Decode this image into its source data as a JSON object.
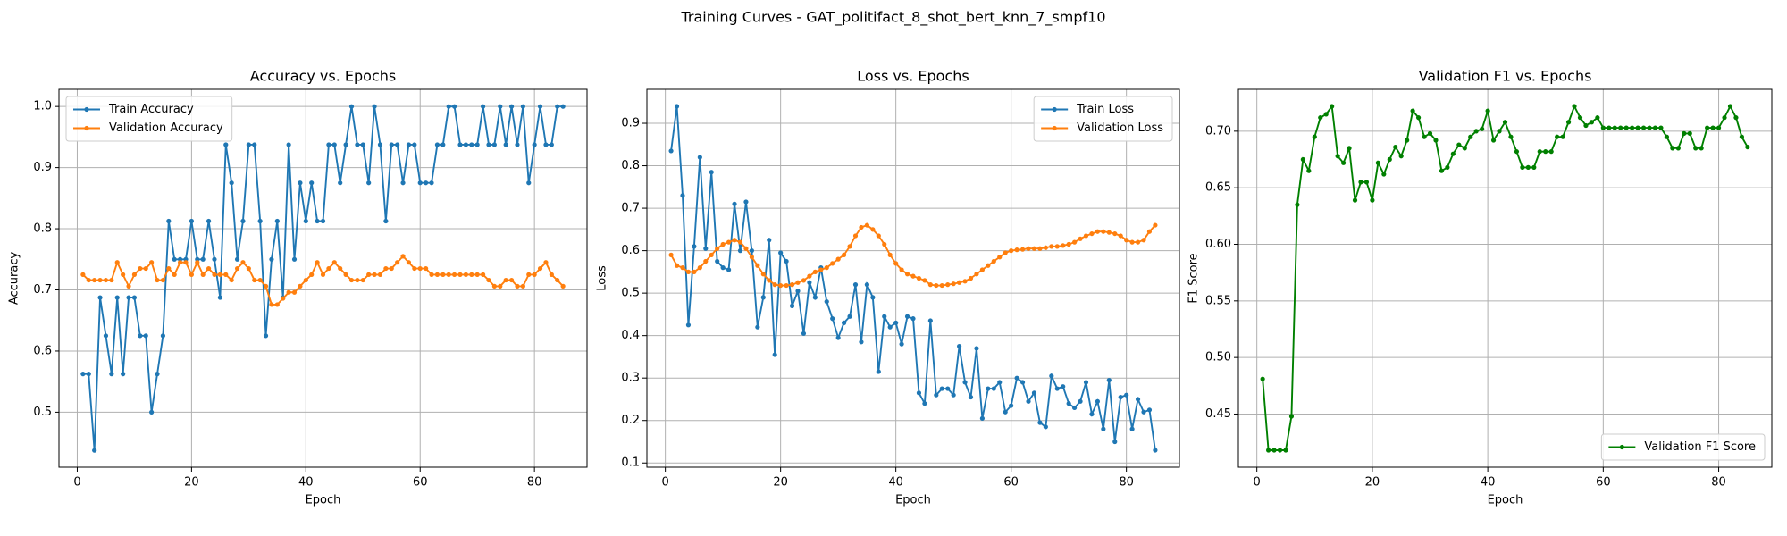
{
  "title": "Training Curves - GAT_politifact_8_shot_bert_knn_7_smpf10",
  "chart_data": [
    {
      "type": "line",
      "title": "Accuracy vs. Epochs",
      "xlabel": "Epoch",
      "ylabel": "Accuracy",
      "x": [
        1,
        2,
        3,
        4,
        5,
        6,
        7,
        8,
        9,
        10,
        11,
        12,
        13,
        14,
        15,
        16,
        17,
        18,
        19,
        20,
        21,
        22,
        23,
        24,
        25,
        26,
        27,
        28,
        29,
        30,
        31,
        32,
        33,
        34,
        35,
        36,
        37,
        38,
        39,
        40,
        41,
        42,
        43,
        44,
        45,
        46,
        47,
        48,
        49,
        50,
        51,
        52,
        53,
        54,
        55,
        56,
        57,
        58,
        59,
        60,
        61,
        62,
        63,
        64,
        65,
        66,
        67,
        68,
        69,
        70,
        71,
        72,
        73,
        74,
        75,
        76,
        77,
        78,
        79,
        80,
        81,
        82,
        83,
        84,
        85
      ],
      "series": [
        {
          "name": "Train Accuracy",
          "color": "#1f77b4",
          "values": [
            0.5625,
            0.5625,
            0.4375,
            0.6875,
            0.625,
            0.5625,
            0.6875,
            0.5625,
            0.6875,
            0.6875,
            0.625,
            0.625,
            0.5,
            0.5625,
            0.625,
            0.8125,
            0.75,
            0.75,
            0.75,
            0.8125,
            0.75,
            0.75,
            0.8125,
            0.75,
            0.6875,
            0.9375,
            0.875,
            0.75,
            0.8125,
            0.9375,
            0.9375,
            0.8125,
            0.625,
            0.75,
            0.8125,
            0.6875,
            0.9375,
            0.75,
            0.875,
            0.8125,
            0.875,
            0.8125,
            0.8125,
            0.9375,
            0.9375,
            0.875,
            0.9375,
            1.0,
            0.9375,
            0.9375,
            0.875,
            1.0,
            0.9375,
            0.8125,
            0.9375,
            0.9375,
            0.875,
            0.9375,
            0.9375,
            0.875,
            0.875,
            0.875,
            0.9375,
            0.9375,
            1.0,
            1.0,
            0.9375,
            0.9375,
            0.9375,
            0.9375,
            1.0,
            0.9375,
            0.9375,
            1.0,
            0.9375,
            1.0,
            0.9375,
            1.0,
            0.875,
            0.9375,
            1.0,
            0.9375,
            0.9375,
            1.0,
            1.0
          ]
        },
        {
          "name": "Validation Accuracy",
          "color": "#ff7f0e",
          "values": [
            0.725,
            0.716,
            0.716,
            0.716,
            0.716,
            0.716,
            0.745,
            0.725,
            0.706,
            0.725,
            0.735,
            0.735,
            0.745,
            0.716,
            0.716,
            0.735,
            0.725,
            0.745,
            0.745,
            0.725,
            0.745,
            0.725,
            0.735,
            0.725,
            0.725,
            0.725,
            0.716,
            0.735,
            0.745,
            0.735,
            0.716,
            0.716,
            0.706,
            0.676,
            0.676,
            0.686,
            0.696,
            0.696,
            0.706,
            0.716,
            0.725,
            0.745,
            0.725,
            0.735,
            0.745,
            0.735,
            0.725,
            0.716,
            0.716,
            0.716,
            0.725,
            0.725,
            0.725,
            0.735,
            0.735,
            0.745,
            0.755,
            0.745,
            0.735,
            0.735,
            0.735,
            0.725,
            0.725,
            0.725,
            0.725,
            0.725,
            0.725,
            0.725,
            0.725,
            0.725,
            0.725,
            0.716,
            0.706,
            0.706,
            0.716,
            0.716,
            0.706,
            0.706,
            0.725,
            0.725,
            0.735,
            0.745,
            0.725,
            0.716,
            0.706
          ]
        }
      ],
      "xlim": [
        -3.2,
        89.2
      ],
      "ylim": [
        0.41,
        1.028
      ],
      "xticks": [
        0,
        20,
        40,
        60,
        80
      ],
      "yticks": [
        0.5,
        0.6,
        0.7,
        0.8,
        0.9,
        {
          "value": 1,
          "label": "1.0"
        }
      ],
      "grid": true,
      "legend": "upper left"
    },
    {
      "type": "line",
      "title": "Loss vs. Epochs",
      "xlabel": "Epoch",
      "ylabel": "Loss",
      "x": [
        1,
        2,
        3,
        4,
        5,
        6,
        7,
        8,
        9,
        10,
        11,
        12,
        13,
        14,
        15,
        16,
        17,
        18,
        19,
        20,
        21,
        22,
        23,
        24,
        25,
        26,
        27,
        28,
        29,
        30,
        31,
        32,
        33,
        34,
        35,
        36,
        37,
        38,
        39,
        40,
        41,
        42,
        43,
        44,
        45,
        46,
        47,
        48,
        49,
        50,
        51,
        52,
        53,
        54,
        55,
        56,
        57,
        58,
        59,
        60,
        61,
        62,
        63,
        64,
        65,
        66,
        67,
        68,
        69,
        70,
        71,
        72,
        73,
        74,
        75,
        76,
        77,
        78,
        79,
        80,
        81,
        82,
        83,
        84,
        85
      ],
      "series": [
        {
          "name": "Train Loss",
          "color": "#1f77b4",
          "values": [
            0.835,
            0.94,
            0.73,
            0.425,
            0.61,
            0.82,
            0.605,
            0.785,
            0.575,
            0.56,
            0.555,
            0.71,
            0.6,
            0.715,
            0.6,
            0.42,
            0.49,
            0.625,
            0.355,
            0.595,
            0.575,
            0.47,
            0.505,
            0.405,
            0.525,
            0.49,
            0.56,
            0.48,
            0.44,
            0.395,
            0.43,
            0.445,
            0.52,
            0.385,
            0.52,
            0.49,
            0.315,
            0.445,
            0.42,
            0.43,
            0.38,
            0.445,
            0.44,
            0.265,
            0.24,
            0.435,
            0.26,
            0.275,
            0.275,
            0.26,
            0.375,
            0.29,
            0.255,
            0.37,
            0.205,
            0.275,
            0.275,
            0.29,
            0.22,
            0.235,
            0.3,
            0.29,
            0.245,
            0.265,
            0.195,
            0.185,
            0.305,
            0.275,
            0.28,
            0.24,
            0.23,
            0.245,
            0.29,
            0.215,
            0.245,
            0.18,
            0.295,
            0.15,
            0.255,
            0.26,
            0.18,
            0.25,
            0.22,
            0.225,
            0.13
          ]
        },
        {
          "name": "Validation Loss",
          "color": "#ff7f0e",
          "values": [
            0.59,
            0.565,
            0.56,
            0.55,
            0.55,
            0.56,
            0.575,
            0.59,
            0.605,
            0.615,
            0.62,
            0.625,
            0.62,
            0.605,
            0.585,
            0.565,
            0.545,
            0.53,
            0.52,
            0.518,
            0.518,
            0.52,
            0.525,
            0.53,
            0.54,
            0.55,
            0.555,
            0.56,
            0.57,
            0.58,
            0.59,
            0.61,
            0.635,
            0.655,
            0.66,
            0.65,
            0.635,
            0.615,
            0.59,
            0.57,
            0.555,
            0.545,
            0.54,
            0.535,
            0.53,
            0.52,
            0.518,
            0.518,
            0.52,
            0.522,
            0.525,
            0.528,
            0.535,
            0.545,
            0.555,
            0.565,
            0.575,
            0.585,
            0.595,
            0.6,
            0.602,
            0.603,
            0.605,
            0.605,
            0.605,
            0.607,
            0.61,
            0.61,
            0.612,
            0.615,
            0.62,
            0.628,
            0.635,
            0.64,
            0.645,
            0.645,
            0.643,
            0.64,
            0.635,
            0.625,
            0.62,
            0.62,
            0.625,
            0.645,
            0.66
          ]
        }
      ],
      "xlim": [
        -3.2,
        89.2
      ],
      "ylim": [
        0.09,
        0.98
      ],
      "xticks": [
        0,
        20,
        40,
        60,
        80
      ],
      "yticks": [
        0.1,
        0.2,
        0.3,
        0.4,
        0.5,
        0.6,
        0.7,
        0.8,
        0.9
      ],
      "grid": true,
      "legend": "upper right"
    },
    {
      "type": "line",
      "title": "Validation F1 vs. Epochs",
      "xlabel": "Epoch",
      "ylabel": "F1 Score",
      "x": [
        1,
        2,
        3,
        4,
        5,
        6,
        7,
        8,
        9,
        10,
        11,
        12,
        13,
        14,
        15,
        16,
        17,
        18,
        19,
        20,
        21,
        22,
        23,
        24,
        25,
        26,
        27,
        28,
        29,
        30,
        31,
        32,
        33,
        34,
        35,
        36,
        37,
        38,
        39,
        40,
        41,
        42,
        43,
        44,
        45,
        46,
        47,
        48,
        49,
        50,
        51,
        52,
        53,
        54,
        55,
        56,
        57,
        58,
        59,
        60,
        61,
        62,
        63,
        64,
        65,
        66,
        67,
        68,
        69,
        70,
        71,
        72,
        73,
        74,
        75,
        76,
        77,
        78,
        79,
        80,
        81,
        82,
        83,
        84,
        85
      ],
      "series": [
        {
          "name": "Validation F1 Score",
          "color": "#008000",
          "values": [
            0.481,
            0.418,
            0.418,
            0.418,
            0.418,
            0.448,
            0.635,
            0.675,
            0.665,
            0.695,
            0.712,
            0.715,
            0.722,
            0.678,
            0.672,
            0.685,
            0.639,
            0.655,
            0.655,
            0.639,
            0.672,
            0.662,
            0.675,
            0.686,
            0.678,
            0.692,
            0.718,
            0.712,
            0.695,
            0.698,
            0.692,
            0.665,
            0.668,
            0.68,
            0.688,
            0.685,
            0.695,
            0.7,
            0.702,
            0.718,
            0.692,
            0.7,
            0.708,
            0.695,
            0.682,
            0.668,
            0.668,
            0.668,
            0.682,
            0.682,
            0.682,
            0.695,
            0.695,
            0.708,
            0.722,
            0.712,
            0.705,
            0.708,
            0.712,
            0.703,
            0.703,
            0.703,
            0.703,
            0.703,
            0.703,
            0.703,
            0.703,
            0.703,
            0.703,
            0.703,
            0.695,
            0.685,
            0.685,
            0.698,
            0.698,
            0.685,
            0.685,
            0.703,
            0.703,
            0.703,
            0.712,
            0.722,
            0.712,
            0.695,
            0.686
          ]
        }
      ],
      "xlim": [
        -3.2,
        89.2
      ],
      "ylim": [
        0.403,
        0.737
      ],
      "xticks": [
        0,
        20,
        40,
        60,
        80
      ],
      "yticks": [
        0.45,
        {
          "value": 0.5,
          "label": "0.50"
        },
        0.55,
        {
          "value": 0.6,
          "label": "0.60"
        },
        0.65,
        {
          "value": 0.7,
          "label": "0.70"
        }
      ],
      "grid": true,
      "legend": "lower right"
    }
  ]
}
